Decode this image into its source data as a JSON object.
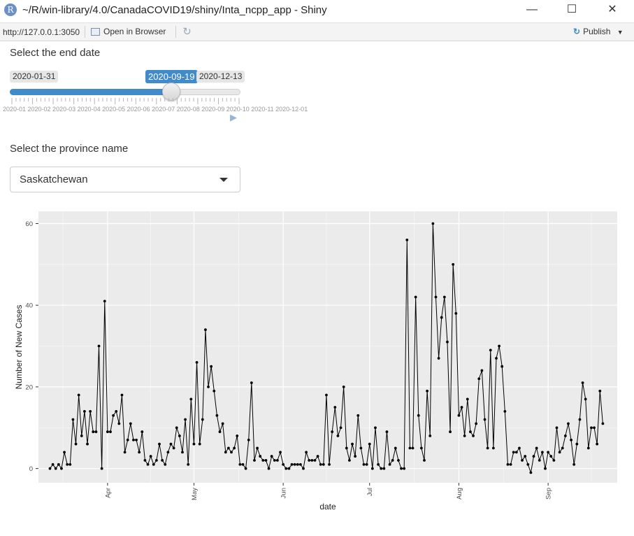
{
  "window": {
    "title": "~/R/win-library/4.0/CanadaCOVID19/shiny/Inta_ncpp_app - Shiny",
    "icon": "R",
    "controls": {
      "minimize": "—",
      "maximize": "☐",
      "close": "✕"
    }
  },
  "toolbar": {
    "url": "http://127.0.0.1:3050",
    "open_in_browser": "Open in Browser",
    "publish": "Publish"
  },
  "date_slider": {
    "label": "Select the end date",
    "min": "2020-01-31",
    "max": "2020-12-13",
    "value": "2020-09-19",
    "fraction": 0.7,
    "grid_text": "2020-01 2020-02 2020-03 2020-04 2020-05 2020-06 2020-07 2020-08 2020-09 2020-10 2020-11 2020-12-01"
  },
  "province_select": {
    "label": "Select the province name",
    "value": "Saskatchewan"
  },
  "chart_data": {
    "type": "line",
    "xlabel": "date",
    "ylabel": "Number of New Cases",
    "x_ticks": [
      "Apr",
      "May",
      "Jun",
      "Jul",
      "Aug",
      "Sep"
    ],
    "y_ticks": [
      0,
      20,
      40,
      60
    ],
    "xlim": [
      "2020-03-08",
      "2020-09-25"
    ],
    "ylim": [
      -3.5,
      63
    ],
    "start_date": "2020-03-12",
    "series": [
      {
        "values": [
          0,
          1,
          0,
          1,
          0,
          4,
          1,
          1,
          12,
          6,
          18,
          8,
          14,
          6,
          14,
          9,
          9,
          30,
          0,
          41,
          9,
          9,
          13,
          14,
          11,
          18,
          4,
          7,
          11,
          7,
          7,
          4,
          9,
          2,
          1,
          3,
          1,
          2,
          6,
          2,
          1,
          4,
          6,
          5,
          10,
          8,
          4,
          12,
          1,
          17,
          6,
          26,
          6,
          12,
          34,
          20,
          25,
          19,
          13,
          9,
          11,
          4,
          5,
          4,
          5,
          8,
          1,
          1,
          0,
          7,
          21,
          2,
          5,
          3,
          2,
          2,
          0,
          3,
          2,
          2,
          4,
          1,
          0,
          0,
          1,
          1,
          1,
          1,
          0,
          4,
          2,
          2,
          2,
          3,
          1,
          1,
          18,
          1,
          9,
          15,
          8,
          10,
          20,
          5,
          2,
          6,
          3,
          13,
          5,
          1,
          1,
          6,
          0,
          10,
          1,
          0,
          0,
          9,
          1,
          2,
          5,
          2,
          0,
          0,
          56,
          5,
          5,
          42,
          13,
          5,
          2,
          19,
          8,
          60,
          42,
          27,
          37,
          42,
          31,
          9,
          50,
          38,
          13,
          15,
          8,
          17,
          9,
          8,
          11,
          22,
          24,
          12,
          5,
          29,
          5,
          27,
          30,
          25,
          14,
          1,
          1,
          4,
          4,
          5,
          2,
          3,
          1,
          -1,
          3,
          5,
          2,
          4,
          0,
          4,
          3,
          2,
          10,
          4,
          5,
          8,
          11,
          7,
          1,
          6,
          12,
          21,
          17,
          5,
          10,
          10,
          6,
          19,
          11
        ]
      }
    ]
  }
}
